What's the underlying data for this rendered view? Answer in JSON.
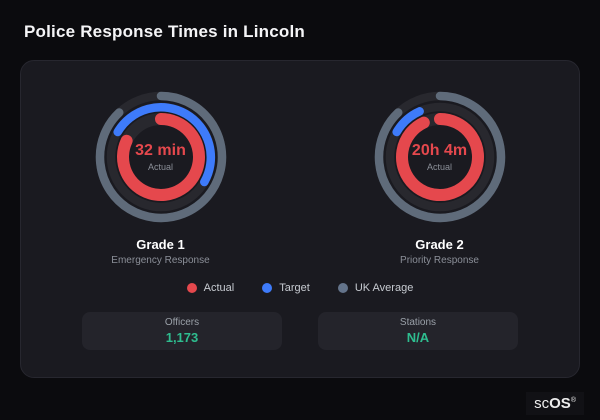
{
  "title": "Police Response Times in Lincoln",
  "brand": {
    "name_prefix": "sc",
    "name_suffix": "OS",
    "reg": "®"
  },
  "card": {
    "legend": [
      {
        "label": "Actual",
        "color": "#e5484d"
      },
      {
        "label": "Target",
        "color": "#3e7bfa"
      },
      {
        "label": "UK Average",
        "color": "#64748b"
      }
    ],
    "stats": [
      {
        "label": "Officers",
        "value": "1,173"
      },
      {
        "label": "Stations",
        "value": "N/A"
      }
    ]
  },
  "colors": {
    "actual": "#e5484d",
    "target": "#3e7bfa",
    "uk_average": "#5f6b7a",
    "track": "#28282e",
    "stat_value": "#2ebd8f"
  },
  "chart_data": {
    "type": "gauge",
    "title": "Police Response Times in Lincoln",
    "legend": [
      "Actual",
      "Target",
      "UK Average"
    ],
    "legend_position": "bottom",
    "gauges": [
      {
        "name": "Grade 1",
        "subtitle": "Emergency Response",
        "value": "32 min",
        "value_label": "Actual",
        "series": [
          {
            "name": "actual",
            "fraction": 0.82,
            "start_deg": 0
          },
          {
            "name": "target",
            "fraction": 0.5,
            "start_deg": -60
          },
          {
            "name": "uk_average",
            "fraction": 0.88,
            "start_deg": 0
          }
        ]
      },
      {
        "name": "Grade 2",
        "subtitle": "Priority Response",
        "value": "20h 4m",
        "value_label": "Actual",
        "series": [
          {
            "name": "actual",
            "fraction": 0.93,
            "start_deg": 0
          },
          {
            "name": "target",
            "fraction": 0.1,
            "start_deg": -60
          },
          {
            "name": "uk_average",
            "fraction": 0.88,
            "start_deg": 0
          }
        ]
      }
    ]
  }
}
